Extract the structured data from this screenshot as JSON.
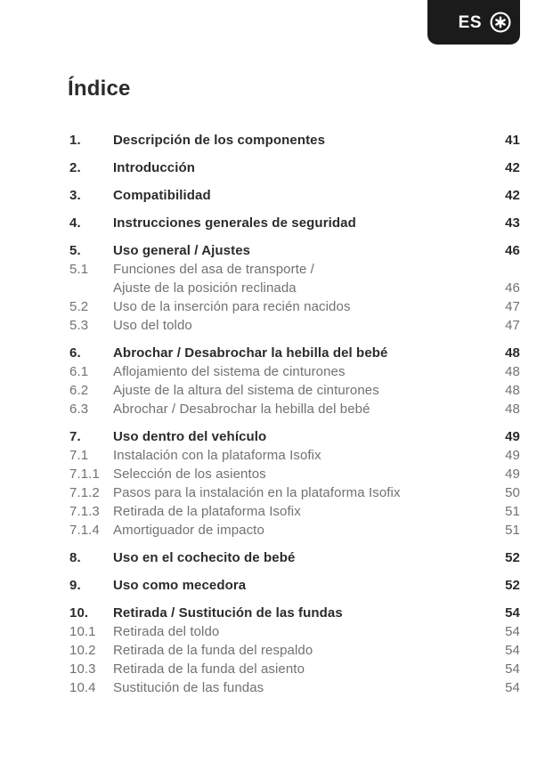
{
  "header": {
    "language_label": "ES",
    "brand_icon": "circled-asterisk"
  },
  "page": {
    "title": "Índice"
  },
  "toc": {
    "sections": [
      {
        "number": "1.",
        "title": "Descripción de los componentes",
        "page": "41",
        "subitems": []
      },
      {
        "number": "2.",
        "title": "Introducción",
        "page": "42",
        "subitems": []
      },
      {
        "number": "3.",
        "title": "Compatibilidad",
        "page": "42",
        "subitems": []
      },
      {
        "number": "4.",
        "title": "Instrucciones generales de seguridad",
        "page": "43",
        "subitems": []
      },
      {
        "number": "5.",
        "title": "Uso general / Ajustes",
        "page": "46",
        "subitems": [
          {
            "number": "5.1",
            "title": "Funciones del asa de transporte /\nAjuste de la posición reclinada",
            "page": "46"
          },
          {
            "number": "5.2",
            "title": "Uso de la inserción para recién nacidos",
            "page": "47"
          },
          {
            "number": "5.3",
            "title": "Uso del toldo",
            "page": "47"
          }
        ]
      },
      {
        "number": "6.",
        "title": "Abrochar / Desabrochar la hebilla del bebé",
        "page": "48",
        "subitems": [
          {
            "number": "6.1",
            "title": "Aflojamiento del sistema de cinturones",
            "page": "48"
          },
          {
            "number": "6.2",
            "title": "Ajuste de la altura del sistema de cinturones",
            "page": "48"
          },
          {
            "number": "6.3",
            "title": "Abrochar / Desabrochar la hebilla del bebé",
            "page": "48"
          }
        ]
      },
      {
        "number": "7.",
        "title": "Uso dentro del vehículo",
        "page": "49",
        "subitems": [
          {
            "number": "7.1",
            "title": "Instalación con la plataforma Isofix",
            "page": "49"
          },
          {
            "number": "7.1.1",
            "title": "Selección de los asientos",
            "page": "49"
          },
          {
            "number": "7.1.2",
            "title": "Pasos para la instalación en la plataforma Isofix",
            "page": "50"
          },
          {
            "number": "7.1.3",
            "title": "Retirada de la plataforma Isofix",
            "page": "51"
          },
          {
            "number": "7.1.4",
            "title": "Amortiguador de impacto",
            "page": "51"
          }
        ]
      },
      {
        "number": "8.",
        "title": "Uso en el cochecito de bebé",
        "page": "52",
        "subitems": []
      },
      {
        "number": "9.",
        "title": "Uso como mecedora",
        "page": "52",
        "subitems": []
      },
      {
        "number": "10.",
        "title": "Retirada / Sustitución de las fundas",
        "page": "54",
        "subitems": [
          {
            "number": "10.1",
            "title": "Retirada del toldo",
            "page": "54"
          },
          {
            "number": "10.2",
            "title": "Retirada de la funda del respaldo",
            "page": "54"
          },
          {
            "number": "10.3",
            "title": "Retirada de la funda del asiento",
            "page": "54"
          },
          {
            "number": "10.4",
            "title": "Sustitución de las fundas",
            "page": "54"
          }
        ]
      }
    ]
  }
}
